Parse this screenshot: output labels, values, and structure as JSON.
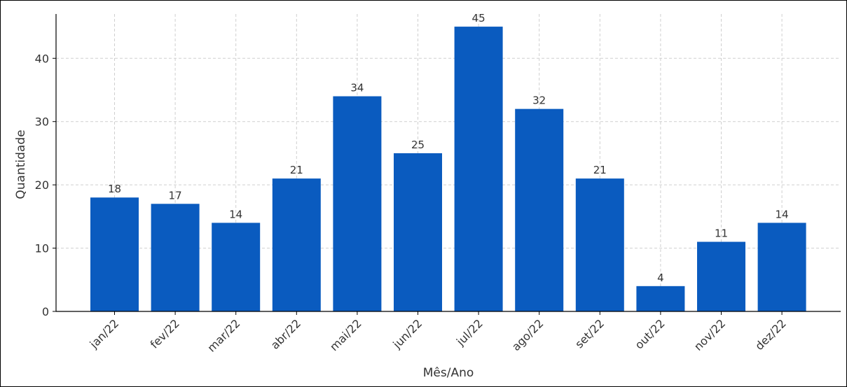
{
  "chart_data": {
    "type": "bar",
    "title": "",
    "xlabel": "Mês/Ano",
    "ylabel": "Quantidade",
    "categories": [
      "jan/22",
      "fev/22",
      "mar/22",
      "abr/22",
      "mai/22",
      "jun/22",
      "jul/22",
      "ago/22",
      "set/22",
      "out/22",
      "nov/22",
      "dez/22"
    ],
    "values": [
      18,
      17,
      14,
      21,
      34,
      25,
      45,
      32,
      21,
      4,
      11,
      14
    ],
    "ylim": [
      0,
      47
    ],
    "yticks": [
      0,
      10,
      20,
      30,
      40
    ],
    "grid": true,
    "bar_color": "#0a5bbf",
    "data_labels": true
  }
}
